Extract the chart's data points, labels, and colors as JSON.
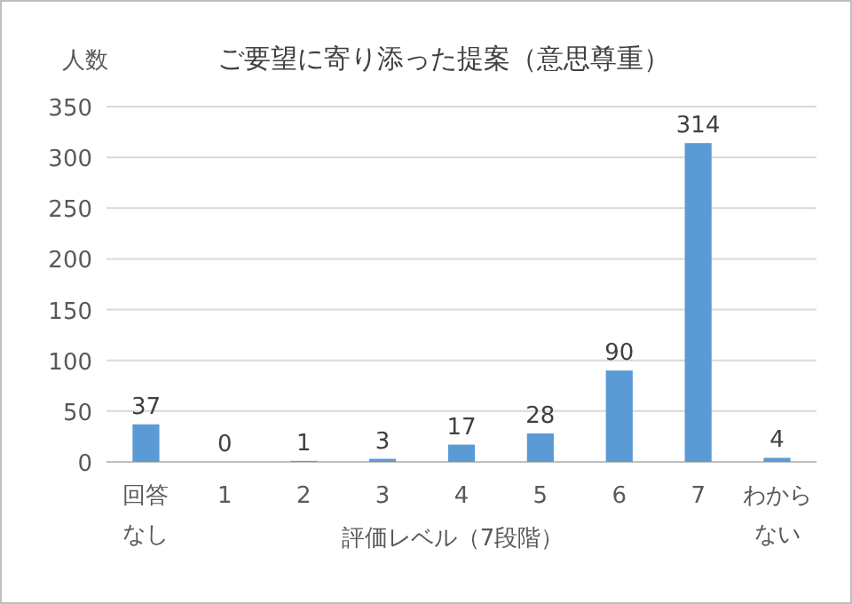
{
  "chart_data": {
    "type": "bar",
    "title": "ご要望に寄り添った提案（意思尊重）",
    "xlabel": "評価レベル（7段階）",
    "ylabel": "人数",
    "categories": [
      "回答なし",
      "1",
      "2",
      "3",
      "4",
      "5",
      "6",
      "7",
      "わからない"
    ],
    "values": [
      37,
      0,
      1,
      3,
      17,
      28,
      90,
      314,
      4
    ],
    "color": "#5b9bd5",
    "data_labels": true,
    "grid": "y",
    "ylim": [
      0,
      350
    ],
    "yticks": [
      0,
      50,
      100,
      150,
      200,
      250,
      300,
      350
    ]
  }
}
